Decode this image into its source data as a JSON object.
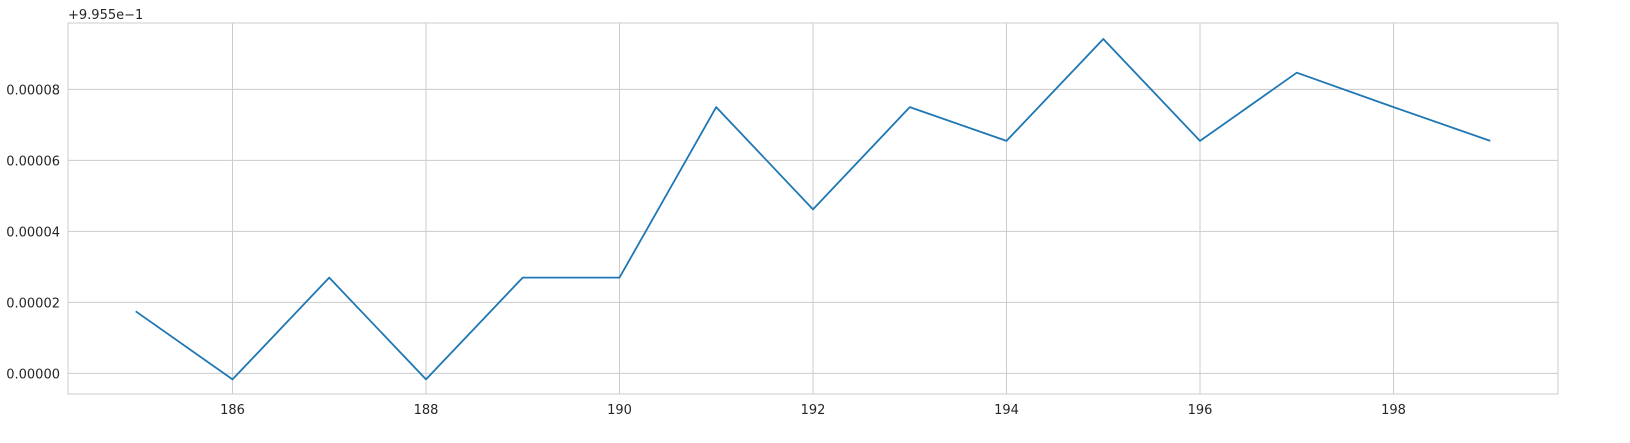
{
  "chart_data": {
    "type": "line",
    "title": "",
    "xlabel": "",
    "ylabel": "",
    "offset_text": "+9.955e−1",
    "xlim": [
      184.3,
      199.7
    ],
    "ylim": [
      -5.8e-06,
      9.87e-05
    ],
    "x_ticks": [
      186,
      188,
      190,
      192,
      194,
      196,
      198
    ],
    "x_tick_labels": [
      "186",
      "188",
      "190",
      "192",
      "194",
      "196",
      "198"
    ],
    "y_ticks": [
      0,
      2e-05,
      4e-05,
      6e-05,
      8e-05
    ],
    "y_tick_labels": [
      "0.00000",
      "0.00002",
      "0.00004",
      "0.00006",
      "0.00008"
    ],
    "grid": true,
    "line_color": "#1f77b4",
    "series": [
      {
        "x": [
          185,
          186,
          187,
          188,
          189,
          190,
          191,
          192,
          193,
          194,
          195,
          196,
          197,
          198,
          199
        ],
        "y": [
          1.75e-05,
          -1.7e-06,
          2.7e-05,
          -1.7e-06,
          2.7e-05,
          2.7e-05,
          7.5e-05,
          4.62e-05,
          7.5e-05,
          6.55e-05,
          9.42e-05,
          6.55e-05,
          8.47e-05,
          7.5e-05,
          6.55e-05
        ]
      }
    ]
  }
}
